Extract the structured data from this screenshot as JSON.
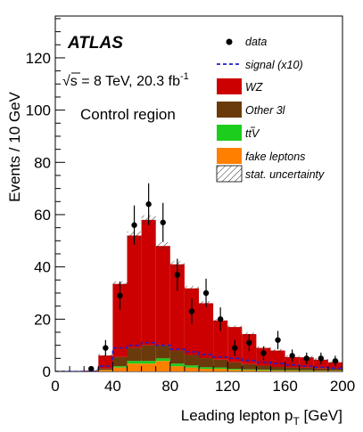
{
  "colors": {
    "WZ": "#cc0000",
    "Other 3l": "#6b3a0a",
    "ttV": "#1ccd1c",
    "fake leptons": "#ff7f00",
    "signal": "#1f1fcc"
  },
  "labels": {
    "experiment": "ATLAS",
    "energy": "s = 8 TeV, 20.3 fb",
    "energy_sqrt": "√",
    "energy_exp": "-1",
    "region": "Control region",
    "ylabel": "Events / 10 GeV",
    "xlabel_main": "Leading lepton p",
    "xlabel_sub": "T",
    "xlabel_unit": " [GeV]"
  },
  "legend": {
    "data": "data",
    "signal": "signal (x10)",
    "wz": "WZ",
    "other3l": "Other 3l",
    "ttv_t": "t",
    "ttv_tbar": "t",
    "ttv_v": "V",
    "fake": "fake leptons",
    "stat": "stat. uncertainty"
  },
  "chart_data": {
    "type": "bar",
    "title": "",
    "xlabel": "Leading lepton p_T [GeV]",
    "ylabel": "Events / 10 GeV",
    "xlim": [
      0,
      200
    ],
    "ylim": [
      0,
      136
    ],
    "x_ticks": [
      0,
      40,
      80,
      120,
      160,
      200
    ],
    "y_ticks": [
      0,
      20,
      40,
      60,
      80,
      100,
      120
    ],
    "bin_edges": [
      0,
      10,
      20,
      30,
      40,
      50,
      60,
      70,
      80,
      90,
      100,
      110,
      120,
      130,
      140,
      150,
      160,
      170,
      180,
      190,
      200
    ],
    "stacked_series": [
      {
        "name": "fake leptons",
        "values": [
          0,
          0,
          0,
          0.5,
          1.5,
          3,
          3,
          4,
          2,
          1.5,
          1,
          1,
          0.6,
          0.5,
          0.4,
          0.3,
          0.3,
          0.2,
          0.2,
          0.2
        ]
      },
      {
        "name": "ttV",
        "values": [
          0,
          0,
          0,
          0.1,
          0.5,
          1,
          1,
          1,
          1,
          0.8,
          0.6,
          0.5,
          0.4,
          0.3,
          0.3,
          0.2,
          0.2,
          0.2,
          0.1,
          0.1
        ]
      },
      {
        "name": "Other 3l",
        "values": [
          0,
          0,
          0,
          0.5,
          3.5,
          5,
          6,
          5,
          5,
          4,
          3.5,
          3,
          2.5,
          2,
          1.5,
          1.2,
          1,
          1,
          0.8,
          0.7
        ]
      },
      {
        "name": "WZ",
        "values": [
          0,
          0,
          0.3,
          5,
          28,
          43,
          48,
          38,
          33,
          25.5,
          21,
          15,
          13.5,
          11.5,
          6.8,
          6.3,
          4,
          4,
          3.4,
          2.5
        ]
      }
    ],
    "data_points": [
      {
        "x": 25,
        "y": 1,
        "err": 1.0
      },
      {
        "x": 35,
        "y": 9,
        "err": 3.0
      },
      {
        "x": 45,
        "y": 29,
        "err": 5.4
      },
      {
        "x": 55,
        "y": 56,
        "err": 7.5
      },
      {
        "x": 65,
        "y": 64,
        "err": 8.0
      },
      {
        "x": 75,
        "y": 57,
        "err": 7.5
      },
      {
        "x": 85,
        "y": 37,
        "err": 6.1
      },
      {
        "x": 95,
        "y": 23,
        "err": 4.8
      },
      {
        "x": 105,
        "y": 30,
        "err": 5.5
      },
      {
        "x": 115,
        "y": 20,
        "err": 4.5
      },
      {
        "x": 125,
        "y": 9,
        "err": 3.0
      },
      {
        "x": 135,
        "y": 11,
        "err": 3.3
      },
      {
        "x": 145,
        "y": 7,
        "err": 2.6
      },
      {
        "x": 155,
        "y": 12,
        "err": 3.5
      },
      {
        "x": 165,
        "y": 6,
        "err": 2.4
      },
      {
        "x": 175,
        "y": 5,
        "err": 2.2
      },
      {
        "x": 185,
        "y": 5,
        "err": 2.2
      },
      {
        "x": 195,
        "y": 4,
        "err": 2.0
      }
    ],
    "signal_x10": [
      0,
      0,
      0,
      2,
      9,
      10,
      11,
      10,
      8.5,
      7.5,
      6.5,
      5.5,
      5,
      4.2,
      3.5,
      3,
      2.5,
      2,
      1.6,
      1.2
    ],
    "stat_uncertainty_fraction": 0.03,
    "legend_position": "top-right",
    "grid": false
  }
}
